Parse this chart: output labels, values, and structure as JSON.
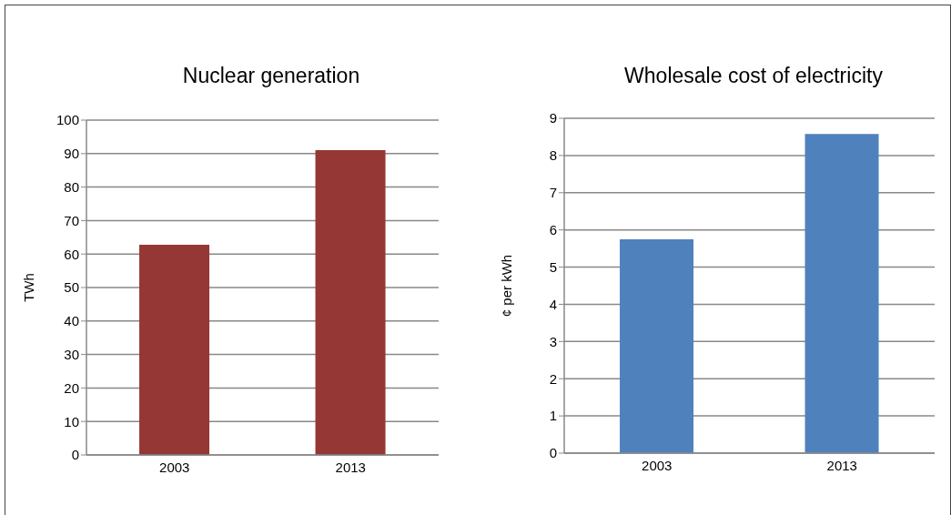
{
  "chart_data": [
    {
      "type": "bar",
      "title": "Nuclear generation",
      "ylabel": "TWh",
      "categories": [
        "2003",
        "2013"
      ],
      "values": [
        62.8,
        91
      ],
      "color": "#953735",
      "ylim": [
        0,
        100
      ],
      "yticks": [
        0,
        10,
        20,
        30,
        40,
        50,
        60,
        70,
        80,
        90,
        100
      ],
      "grid": "y"
    },
    {
      "type": "bar",
      "title": "Wholesale cost of electricity",
      "ylabel": "¢ per kWh",
      "categories": [
        "2003",
        "2013"
      ],
      "values": [
        5.75,
        8.58
      ],
      "color": "#4f81bd",
      "ylim": [
        0,
        9
      ],
      "yticks": [
        0,
        1,
        2,
        3,
        4,
        5,
        6,
        7,
        8,
        9
      ],
      "grid": "y"
    }
  ]
}
